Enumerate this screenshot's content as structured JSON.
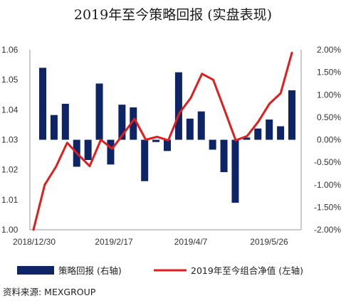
{
  "title": "2019年至今策略回报 (实盘表现)",
  "source": "资料来源: MEXGROUP",
  "colors": {
    "bar": "#0d2466",
    "line": "#e11d1d",
    "axis": "#9a9a9a"
  },
  "chart_data": {
    "type": "bar+line",
    "x_tick_labels": [
      "2018/12/30",
      "2019/2/17",
      "2019/4/7",
      "2019/5/26"
    ],
    "left_axis": {
      "ticks": [
        "1.00",
        "1.01",
        "1.02",
        "1.03",
        "1.04",
        "1.05",
        "1.06"
      ],
      "range": [
        1.0,
        1.06
      ]
    },
    "right_axis": {
      "ticks": [
        "2.00%",
        "1.50%",
        "1.00%",
        "0.50%",
        "0.00%",
        "-0.50%",
        "-1.00%",
        "-1.50%",
        "-2.00%"
      ],
      "range": [
        -2.0,
        2.0
      ]
    },
    "series": [
      {
        "name": "策略回报 (右轴)",
        "type": "bar",
        "axis": "right",
        "unit": "%",
        "values": [
          1.6,
          0.55,
          0.8,
          -0.6,
          -0.45,
          1.25,
          -0.55,
          0.78,
          0.72,
          -0.92,
          -0.05,
          -0.25,
          1.5,
          0.47,
          0.63,
          -0.22,
          -0.72,
          -1.4,
          0.05,
          0.25,
          0.45,
          0.3,
          1.1
        ]
      },
      {
        "name": "2019年至今组合净值 (左轴)",
        "type": "line",
        "axis": "left",
        "values": [
          1.0,
          1.015,
          1.021,
          1.029,
          1.025,
          1.0212,
          1.03,
          1.027,
          1.032,
          1.037,
          1.03,
          1.031,
          1.0298,
          1.039,
          1.044,
          1.052,
          1.05,
          1.04,
          1.0298,
          1.0312,
          1.036,
          1.042,
          1.0455,
          1.059
        ]
      }
    ]
  }
}
